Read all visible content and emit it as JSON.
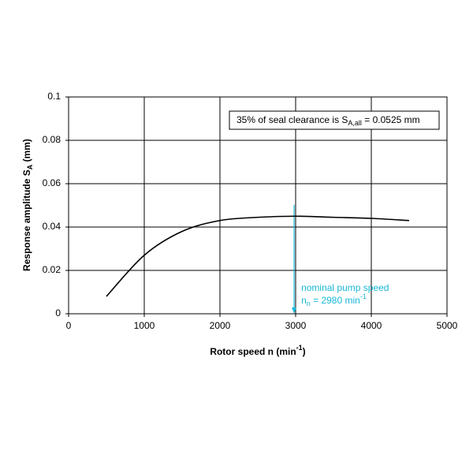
{
  "chart_data": {
    "type": "line",
    "xlabel": [
      "Rotor speed n (min",
      "-1",
      ")"
    ],
    "ylabel": [
      "Response amplitude S",
      "A",
      " (mm)"
    ],
    "x": [
      500,
      1000,
      1500,
      2000,
      2500,
      3000,
      3500,
      4000,
      4500
    ],
    "series": [
      {
        "color": "#000000",
        "values": [
          0.008,
          0.027,
          0.038,
          0.043,
          0.0445,
          0.045,
          0.0445,
          0.044,
          0.043
        ]
      }
    ],
    "xlim": [
      0,
      5000
    ],
    "xticks": [
      0,
      1000,
      2000,
      3000,
      4000,
      5000
    ],
    "ylim": [
      0,
      0.1
    ],
    "yticks": [
      0,
      0.02,
      0.04,
      0.06,
      0.08,
      0.1
    ],
    "grid": true,
    "box_annotation": [
      "35% of seal clearance is S",
      "A,all",
      " = 0.0525 mm"
    ],
    "speed_marker": {
      "x": 2980,
      "color": "#1ab8d8",
      "line1": "nominal pump speed",
      "line2": [
        "n",
        "n",
        " = 2980 min",
        "-1"
      ]
    }
  }
}
